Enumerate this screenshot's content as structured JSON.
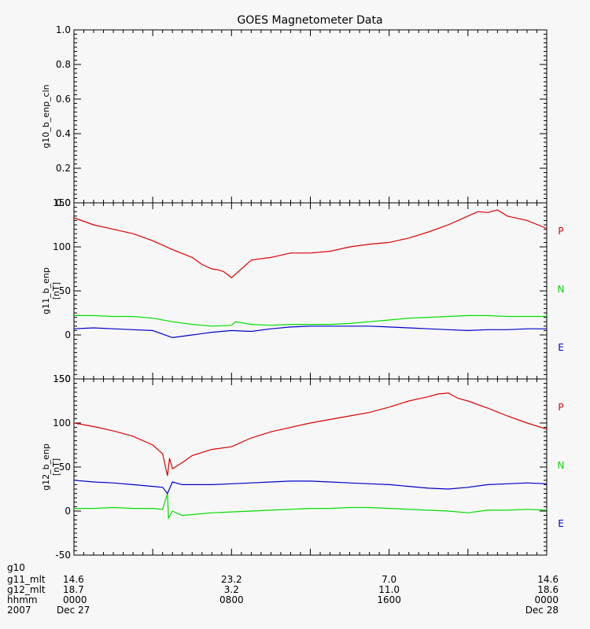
{
  "title": "GOES Magnetometer Data",
  "colors": {
    "P": "#dd0000",
    "N": "#00dd00",
    "E": "#0000c8",
    "axis": "#000000",
    "background": "#f7f7f7"
  },
  "chart_data": [
    {
      "type": "line",
      "id": "g10",
      "ylabel": "g10_b_enp_cln",
      "yunit": "",
      "ylim": [
        0.0,
        1.0
      ],
      "yticks": [
        "0.0",
        "0.2",
        "0.4",
        "0.6",
        "0.8",
        "1.0"
      ],
      "yticks_v": [
        0.0,
        0.2,
        0.4,
        0.6,
        0.8,
        1.0
      ],
      "xlim": [
        0,
        24
      ],
      "series": []
    },
    {
      "type": "line",
      "id": "g11",
      "ylabel": "g11_b_enp",
      "yunit": "[nT]",
      "ylim": [
        -50,
        150
      ],
      "yticks": [
        "-50",
        "0",
        "50",
        "100",
        "150"
      ],
      "yticks_v": [
        -50,
        0,
        50,
        100,
        150
      ],
      "xlim": [
        0,
        24
      ],
      "series": [
        {
          "name": "P",
          "color": "#dd0000",
          "x": [
            0,
            1,
            2,
            3,
            4,
            5,
            6,
            6.5,
            7,
            7.3,
            7.6,
            8,
            9,
            10,
            11,
            12,
            13,
            14,
            15,
            16,
            17,
            18,
            19,
            19.5,
            20,
            20.5,
            21,
            21.5,
            22,
            23,
            24
          ],
          "y": [
            133,
            125,
            120,
            115,
            107,
            97,
            88,
            80,
            75,
            74,
            72,
            65,
            85,
            88,
            93,
            93,
            95,
            100,
            103,
            105,
            110,
            117,
            125,
            130,
            135,
            140,
            139,
            142,
            135,
            130,
            121
          ]
        },
        {
          "name": "N",
          "color": "#00dd00",
          "x": [
            0,
            1,
            2,
            3,
            4,
            5,
            6,
            7,
            8,
            8.2,
            9,
            10,
            11,
            12,
            13,
            14,
            15,
            16,
            17,
            18,
            19,
            20,
            21,
            22,
            23,
            24
          ],
          "y": [
            22,
            22,
            21,
            21,
            19,
            15,
            12,
            10,
            11,
            15,
            12,
            11,
            12,
            12,
            12,
            13,
            15,
            17,
            19,
            20,
            21,
            22,
            22,
            21,
            21,
            21
          ]
        },
        {
          "name": "E",
          "color": "#0000c8",
          "x": [
            0,
            1,
            2,
            3,
            4,
            5,
            6,
            7,
            8,
            9,
            10,
            11,
            12,
            13,
            14,
            15,
            16,
            17,
            18,
            19,
            20,
            21,
            22,
            23,
            24
          ],
          "y": [
            7,
            8,
            7,
            6,
            5,
            -3,
            0,
            3,
            5,
            4,
            7,
            9,
            10,
            10,
            10,
            10,
            9,
            8,
            7,
            6,
            5,
            6,
            6,
            7,
            7
          ]
        }
      ]
    },
    {
      "type": "line",
      "id": "g12",
      "ylabel": "g12_b_enp",
      "yunit": "[nT]",
      "ylim": [
        -50,
        150
      ],
      "yticks": [
        "-50",
        "0",
        "50",
        "100",
        "150"
      ],
      "yticks_v": [
        -50,
        0,
        50,
        100,
        150
      ],
      "xlim": [
        0,
        24
      ],
      "series": [
        {
          "name": "P",
          "color": "#dd0000",
          "x": [
            0,
            1,
            2,
            3,
            4,
            4.5,
            4.75,
            4.85,
            5,
            5.5,
            6,
            7,
            8,
            9,
            10,
            11,
            12,
            13,
            14,
            15,
            16,
            17,
            18,
            18.5,
            19,
            19.5,
            20,
            21,
            22,
            23,
            24
          ],
          "y": [
            100,
            96,
            91,
            85,
            75,
            65,
            40,
            60,
            48,
            55,
            63,
            70,
            73,
            83,
            90,
            95,
            100,
            104,
            108,
            112,
            118,
            125,
            130,
            133,
            134,
            128,
            125,
            117,
            108,
            100,
            93
          ]
        },
        {
          "name": "N",
          "color": "#00dd00",
          "x": [
            0,
            1,
            2,
            3,
            4,
            4.5,
            4.75,
            4.8,
            5,
            5.5,
            6,
            7,
            8,
            9,
            10,
            11,
            12,
            13,
            14,
            15,
            16,
            17,
            18,
            19,
            20,
            21,
            22,
            23,
            24
          ],
          "y": [
            3,
            3,
            4,
            3,
            3,
            2,
            20,
            -8,
            0,
            -5,
            -4,
            -2,
            -1,
            0,
            1,
            2,
            3,
            3,
            4,
            4,
            3,
            2,
            1,
            0,
            -2,
            1,
            1,
            2,
            1
          ]
        },
        {
          "name": "E",
          "color": "#0000c8",
          "x": [
            0,
            1,
            2,
            3,
            4,
            4.5,
            4.75,
            5,
            5.5,
            6,
            7,
            8,
            9,
            10,
            11,
            12,
            13,
            14,
            15,
            16,
            17,
            18,
            19,
            20,
            21,
            22,
            23,
            24
          ],
          "y": [
            35,
            33,
            32,
            30,
            28,
            27,
            20,
            33,
            30,
            30,
            30,
            31,
            32,
            33,
            34,
            34,
            33,
            32,
            31,
            30,
            28,
            26,
            25,
            27,
            30,
            31,
            32,
            31
          ]
        }
      ]
    }
  ],
  "footer": {
    "labels": [
      "g10",
      "g11_mlt",
      "g12_mlt",
      "hhmm",
      "2007"
    ],
    "columns": [
      {
        "x": 0,
        "rows": [
          "",
          "14.6",
          "18.7",
          "0000",
          "Dec 27"
        ]
      },
      {
        "x": 8,
        "rows": [
          "",
          "23.2",
          "3.2",
          "0800",
          ""
        ]
      },
      {
        "x": 16,
        "rows": [
          "",
          "7.0",
          "11.0",
          "1600",
          ""
        ]
      },
      {
        "x": 24,
        "rows": [
          "",
          "14.6",
          "18.6",
          "0000",
          "Dec 28"
        ]
      }
    ]
  }
}
